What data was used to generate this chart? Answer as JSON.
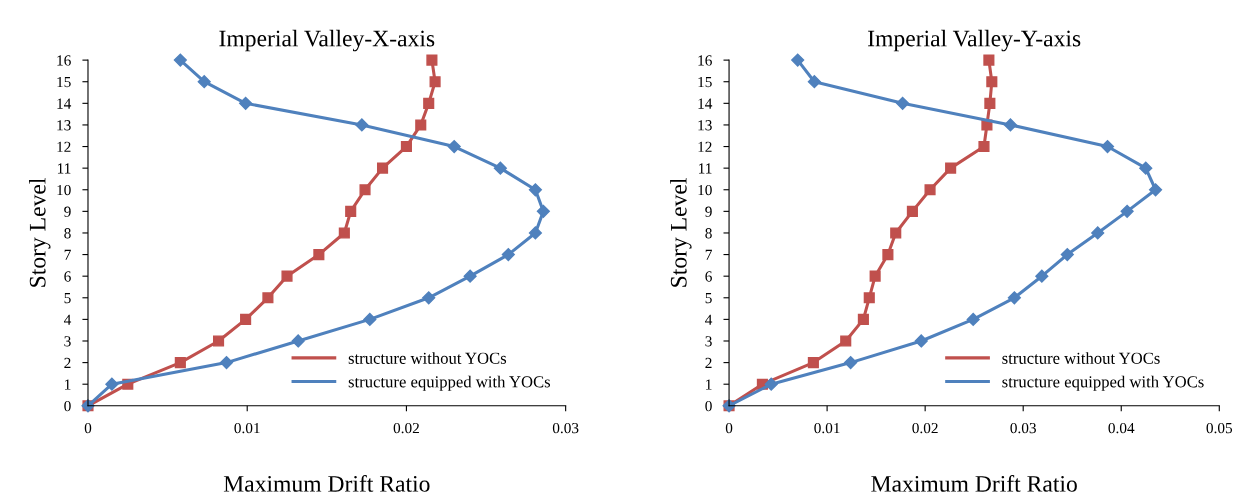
{
  "chart_data": [
    {
      "type": "line",
      "title": "Imperial Valley-X-axis",
      "xlabel": "Maximum Drift Ratio",
      "ylabel": "Story Level",
      "xlim": [
        0,
        0.03
      ],
      "xticks": [
        0,
        0.01,
        0.02,
        0.03
      ],
      "ylim": [
        0,
        16
      ],
      "yticks": [
        0,
        1,
        2,
        3,
        4,
        5,
        6,
        7,
        8,
        9,
        10,
        11,
        12,
        13,
        14,
        15,
        16
      ],
      "grid": false,
      "legend": "bottom right",
      "series": [
        {
          "name": "structure without YOCs",
          "color": "#c0504d",
          "marker": "square",
          "x": [
            0,
            0.0025,
            0.0058,
            0.0082,
            0.0099,
            0.0113,
            0.0125,
            0.0145,
            0.0161,
            0.0165,
            0.0174,
            0.0185,
            0.02,
            0.0209,
            0.0214,
            0.0218,
            0.0216
          ],
          "values": [
            0,
            1,
            2,
            3,
            4,
            5,
            6,
            7,
            8,
            9,
            10,
            11,
            12,
            13,
            14,
            15,
            16
          ]
        },
        {
          "name": "structure equipped with YOCs",
          "color": "#4f81bd",
          "marker": "diamond",
          "x": [
            0,
            0.0015,
            0.0087,
            0.0132,
            0.0177,
            0.0214,
            0.024,
            0.0264,
            0.0281,
            0.0286,
            0.0281,
            0.0259,
            0.023,
            0.0172,
            0.0099,
            0.0073,
            0.0058
          ],
          "values": [
            0,
            1,
            2,
            3,
            4,
            5,
            6,
            7,
            8,
            9,
            10,
            11,
            12,
            13,
            14,
            15,
            16
          ]
        }
      ]
    },
    {
      "type": "line",
      "title": "Imperial Valley-Y-axis",
      "xlabel": "Maximum Drift Ratio",
      "ylabel": "Story Level",
      "xlim": [
        0,
        0.05
      ],
      "xticks": [
        0,
        0.01,
        0.02,
        0.03,
        0.04,
        0.05
      ],
      "ylim": [
        0,
        16
      ],
      "yticks": [
        0,
        1,
        2,
        3,
        4,
        5,
        6,
        7,
        8,
        9,
        10,
        11,
        12,
        13,
        14,
        15,
        16
      ],
      "grid": false,
      "legend": "bottom right",
      "series": [
        {
          "name": "structure without YOCs",
          "color": "#c0504d",
          "marker": "square",
          "x": [
            0,
            0.0034,
            0.0086,
            0.0119,
            0.0137,
            0.0143,
            0.0149,
            0.0162,
            0.017,
            0.0187,
            0.0205,
            0.0226,
            0.026,
            0.0263,
            0.0266,
            0.0268,
            0.0265
          ],
          "values": [
            0,
            1,
            2,
            3,
            4,
            5,
            6,
            7,
            8,
            9,
            10,
            11,
            12,
            13,
            14,
            15,
            16
          ]
        },
        {
          "name": "structure equipped with YOCs",
          "color": "#4f81bd",
          "marker": "diamond",
          "x": [
            0,
            0.0043,
            0.0124,
            0.0196,
            0.0249,
            0.0291,
            0.0319,
            0.0345,
            0.0376,
            0.0406,
            0.0435,
            0.0425,
            0.0386,
            0.0287,
            0.0177,
            0.0087,
            0.007
          ],
          "values": [
            0,
            1,
            2,
            3,
            4,
            5,
            6,
            7,
            8,
            9,
            10,
            11,
            12,
            13,
            14,
            15,
            16
          ]
        }
      ]
    }
  ]
}
